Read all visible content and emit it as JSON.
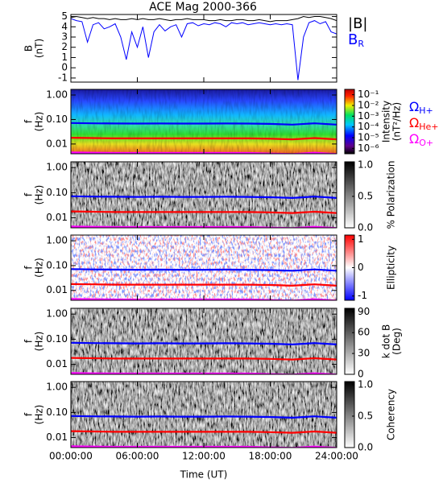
{
  "title": "ACE Mag 2000-366",
  "chart_data": [
    {
      "type": "line",
      "xlim": [
        0,
        24
      ],
      "ylim": [
        -1.4,
        5.2
      ],
      "yticks": [
        -1,
        0,
        1,
        2,
        3,
        4,
        5
      ],
      "ylabel": [
        "B",
        "(nT)"
      ],
      "legend": "right",
      "x": [
        0,
        0.5,
        1,
        1.5,
        2,
        2.5,
        3,
        3.5,
        4,
        4.5,
        5,
        5.5,
        6,
        6.5,
        7,
        7.5,
        8,
        8.5,
        9,
        9.5,
        10,
        10.5,
        11,
        11.5,
        12,
        12.5,
        13,
        13.5,
        14,
        14.5,
        15,
        15.5,
        16,
        16.5,
        17,
        17.5,
        18,
        18.5,
        19,
        19.5,
        20,
        20.5,
        21,
        21.5,
        22,
        22.5,
        23,
        23.5,
        24
      ],
      "series": [
        {
          "name": "|B|",
          "color": "#000000",
          "values": [
            4.9,
            5.0,
            4.9,
            4.8,
            4.9,
            4.8,
            4.8,
            4.7,
            4.8,
            4.7,
            4.7,
            4.8,
            4.7,
            4.8,
            4.7,
            4.7,
            4.8,
            4.7,
            4.6,
            4.7,
            4.7,
            4.8,
            4.7,
            4.7,
            4.7,
            4.6,
            4.6,
            4.7,
            4.6,
            4.6,
            4.7,
            4.7,
            4.6,
            4.6,
            4.7,
            4.6,
            4.5,
            4.6,
            4.6,
            4.6,
            4.7,
            4.8,
            5.0,
            4.9,
            5.0,
            5.0,
            4.9,
            4.8,
            4.6
          ]
        },
        {
          "name": "B",
          "subscript": "R",
          "color": "#0000ff",
          "values": [
            4.8,
            4.6,
            4.5,
            2.5,
            4.2,
            4.4,
            3.8,
            4.0,
            4.3,
            3.0,
            0.8,
            3.5,
            2.0,
            4.0,
            1.0,
            3.5,
            4.2,
            3.6,
            4.0,
            4.2,
            3.0,
            4.3,
            4.4,
            4.1,
            4.3,
            4.2,
            4.4,
            4.3,
            4.0,
            4.4,
            4.3,
            4.4,
            4.2,
            4.3,
            4.4,
            4.3,
            4.2,
            4.3,
            4.2,
            4.3,
            4.2,
            -1.2,
            3.0,
            4.4,
            4.6,
            4.3,
            4.5,
            3.5,
            3.3
          ]
        }
      ]
    },
    {
      "type": "spectrogram",
      "colormap": "rainbow",
      "xlim": [
        0,
        24
      ],
      "ylim": [
        0.004,
        1.7
      ],
      "log_y": true,
      "yticks": [
        {
          "value": 1,
          "label": "1.00"
        },
        {
          "value": 0.1,
          "label": "0.10"
        },
        0.01
      ],
      "ylabel": [
        "f",
        "(Hz)"
      ],
      "clim": [
        -6.5,
        -0.5
      ],
      "cticks": [
        {
          "value": -1,
          "label": "10⁻¹"
        },
        {
          "value": -2,
          "label": "10⁻²"
        },
        {
          "value": -3,
          "label": "10⁻³"
        },
        {
          "value": -4,
          "label": "10⁻⁴"
        },
        {
          "value": -5,
          "label": "10⁻⁵"
        },
        {
          "value": -6,
          "label": "10⁻⁶"
        }
      ],
      "clabel": [
        "Intensity",
        "(nT²/Hz)"
      ],
      "legend": "right",
      "x": [
        0,
        2,
        4,
        6,
        8,
        10,
        12,
        14,
        16,
        18,
        20,
        22,
        24
      ],
      "series": [
        {
          "name": "Ω",
          "subscript": "H+",
          "color": "#0000ff",
          "values": [
            0.072,
            0.07,
            0.069,
            0.068,
            0.069,
            0.068,
            0.068,
            0.069,
            0.068,
            0.066,
            0.062,
            0.07,
            0.062
          ]
        },
        {
          "name": "Ω",
          "subscript": "He+",
          "color": "#ff0000",
          "values": [
            0.018,
            0.0175,
            0.017,
            0.017,
            0.017,
            0.017,
            0.017,
            0.017,
            0.017,
            0.0165,
            0.0155,
            0.0175,
            0.0155
          ]
        },
        {
          "name": "Ω",
          "subscript": "O+",
          "color": "#ff00ff",
          "values": [
            0.0045,
            0.0044,
            0.0043,
            0.0043,
            0.0043,
            0.0043,
            0.0043,
            0.0043,
            0.0043,
            0.0041,
            0.0039,
            0.0044,
            0.0039
          ]
        }
      ]
    },
    {
      "type": "spectrogram",
      "colormap": "gray",
      "xlim": [
        0,
        24
      ],
      "ylim": [
        0.004,
        1.7
      ],
      "log_y": true,
      "yticks": [
        {
          "value": 1,
          "label": "1.00"
        },
        {
          "value": 0.1,
          "label": "0.10"
        },
        0.01
      ],
      "ylabel": [
        "f",
        "(Hz)"
      ],
      "clim": [
        0,
        1.05
      ],
      "cticks": [
        {
          "value": 0,
          "label": "0.0"
        },
        0.5,
        {
          "value": 1,
          "label": "1.0"
        }
      ],
      "clabel": [
        "% Polarization"
      ],
      "x": [
        0,
        2,
        4,
        6,
        8,
        10,
        12,
        14,
        16,
        18,
        20,
        22,
        24
      ],
      "series": [
        {
          "color": "#0000ff",
          "values": [
            0.072,
            0.07,
            0.069,
            0.068,
            0.069,
            0.068,
            0.068,
            0.069,
            0.068,
            0.066,
            0.062,
            0.07,
            0.062
          ]
        },
        {
          "color": "#ff0000",
          "values": [
            0.018,
            0.0175,
            0.017,
            0.017,
            0.017,
            0.017,
            0.017,
            0.017,
            0.017,
            0.0165,
            0.0155,
            0.0175,
            0.0155
          ]
        },
        {
          "color": "#ff00ff",
          "values": [
            0.0045,
            0.0044,
            0.0043,
            0.0043,
            0.0043,
            0.0043,
            0.0043,
            0.0043,
            0.0043,
            0.0041,
            0.0039,
            0.0044,
            0.0039
          ]
        }
      ]
    },
    {
      "type": "spectrogram",
      "colormap": "bwr",
      "xlim": [
        0,
        24
      ],
      "ylim": [
        0.004,
        1.7
      ],
      "log_y": true,
      "yticks": [
        {
          "value": 1,
          "label": "1.00"
        },
        {
          "value": 0.1,
          "label": "0.10"
        },
        0.01
      ],
      "ylabel": [
        "f",
        "(Hz)"
      ],
      "clim": [
        -1.15,
        1.15
      ],
      "cticks": [
        -1,
        0,
        1
      ],
      "clabel": [
        "Ellipticity"
      ],
      "x": [
        0,
        2,
        4,
        6,
        8,
        10,
        12,
        14,
        16,
        18,
        20,
        22,
        24
      ],
      "series": [
        {
          "color": "#0000ff",
          "values": [
            0.072,
            0.07,
            0.069,
            0.068,
            0.069,
            0.068,
            0.068,
            0.069,
            0.068,
            0.066,
            0.062,
            0.07,
            0.062
          ]
        },
        {
          "color": "#ff0000",
          "values": [
            0.018,
            0.0175,
            0.017,
            0.017,
            0.017,
            0.017,
            0.017,
            0.017,
            0.017,
            0.0165,
            0.0155,
            0.0175,
            0.0155
          ]
        },
        {
          "color": "#ff00ff",
          "values": [
            0.0045,
            0.0044,
            0.0043,
            0.0043,
            0.0043,
            0.0043,
            0.0043,
            0.0043,
            0.0043,
            0.0041,
            0.0039,
            0.0044,
            0.0039
          ]
        }
      ]
    },
    {
      "type": "spectrogram",
      "colormap": "gray",
      "xlim": [
        0,
        24
      ],
      "ylim": [
        0.004,
        1.7
      ],
      "log_y": true,
      "yticks": [
        {
          "value": 1,
          "label": "1.00"
        },
        {
          "value": 0.1,
          "label": "0.10"
        },
        0.01
      ],
      "ylabel": [
        "f",
        "(Hz)"
      ],
      "clim": [
        0,
        95
      ],
      "cticks": [
        0,
        30,
        60,
        90
      ],
      "clabel": [
        "k dot B",
        "(Deg)"
      ],
      "x": [
        0,
        2,
        4,
        6,
        8,
        10,
        12,
        14,
        16,
        18,
        20,
        22,
        24
      ],
      "series": [
        {
          "color": "#0000ff",
          "values": [
            0.072,
            0.07,
            0.069,
            0.068,
            0.069,
            0.068,
            0.068,
            0.069,
            0.068,
            0.066,
            0.062,
            0.07,
            0.062
          ]
        },
        {
          "color": "#ff0000",
          "values": [
            0.018,
            0.0175,
            0.017,
            0.017,
            0.017,
            0.017,
            0.017,
            0.017,
            0.017,
            0.0165,
            0.0155,
            0.0175,
            0.0155
          ]
        },
        {
          "color": "#ff00ff",
          "values": [
            0.0045,
            0.0044,
            0.0043,
            0.0043,
            0.0043,
            0.0043,
            0.0043,
            0.0043,
            0.0043,
            0.0041,
            0.0039,
            0.0044,
            0.0039
          ]
        }
      ]
    },
    {
      "type": "spectrogram",
      "colormap": "gray",
      "xlim": [
        0,
        24
      ],
      "ylim": [
        0.004,
        1.7
      ],
      "log_y": true,
      "yticks": [
        {
          "value": 1,
          "label": "1.00"
        },
        {
          "value": 0.1,
          "label": "0.10"
        },
        0.01
      ],
      "ylabel": [
        "f",
        "(Hz)"
      ],
      "clim": [
        0,
        1.05
      ],
      "cticks": [
        {
          "value": 0,
          "label": "0.0"
        },
        0.5,
        {
          "value": 1,
          "label": "1.0"
        }
      ],
      "clabel": [
        "Coherency"
      ],
      "xticks": [
        {
          "value": 0,
          "label": "00:00:00"
        },
        {
          "value": 6,
          "label": "06:00:00"
        },
        {
          "value": 12,
          "label": "12:00:00"
        },
        {
          "value": 18,
          "label": "18:00:00"
        },
        {
          "value": 24,
          "label": "24:00:00"
        }
      ],
      "xlabel": "Time (UT)",
      "x": [
        0,
        2,
        4,
        6,
        8,
        10,
        12,
        14,
        16,
        18,
        20,
        22,
        24
      ],
      "series": [
        {
          "color": "#0000ff",
          "values": [
            0.072,
            0.07,
            0.069,
            0.068,
            0.069,
            0.068,
            0.068,
            0.069,
            0.068,
            0.066,
            0.062,
            0.07,
            0.062
          ]
        },
        {
          "color": "#ff0000",
          "values": [
            0.018,
            0.0175,
            0.017,
            0.017,
            0.017,
            0.017,
            0.017,
            0.017,
            0.017,
            0.0165,
            0.0155,
            0.0175,
            0.0155
          ]
        },
        {
          "color": "#ff00ff",
          "values": [
            0.0045,
            0.0044,
            0.0043,
            0.0043,
            0.0043,
            0.0043,
            0.0043,
            0.0043,
            0.0043,
            0.0041,
            0.0039,
            0.0044,
            0.0039
          ]
        }
      ]
    }
  ]
}
